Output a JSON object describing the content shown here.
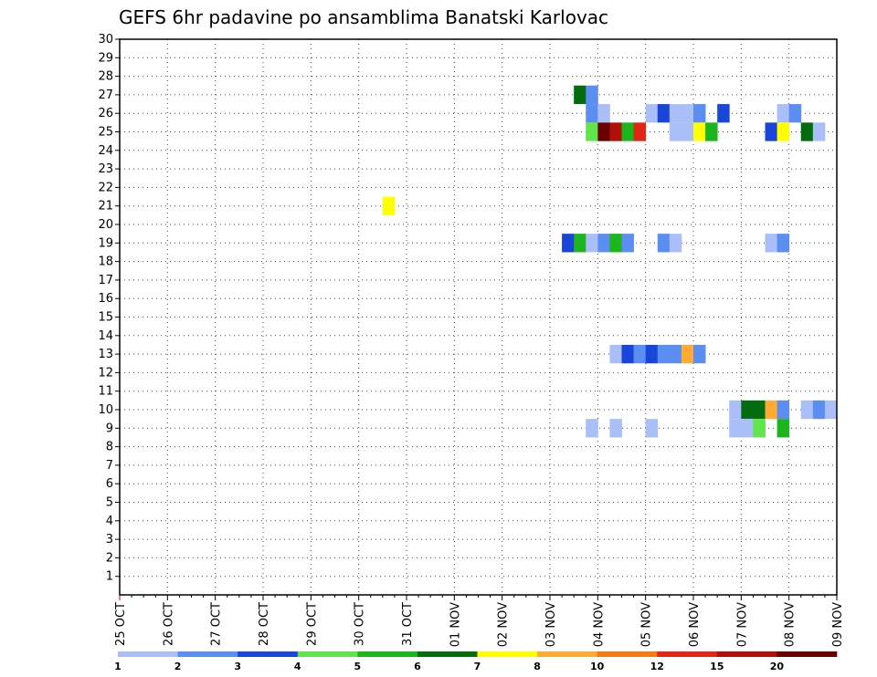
{
  "chart_data": {
    "type": "heatmap",
    "title": "GEFS 6hr padavine po ansamblima Banatski Karlovac",
    "xlabel": "",
    "ylabel": "",
    "x_ticks": [
      "25 OCT",
      "26 OCT",
      "27 OCT",
      "28 OCT",
      "29 OCT",
      "30 OCT",
      "31 OCT",
      "01 NOV",
      "02 NOV",
      "03 NOV",
      "04 NOV",
      "05 NOV",
      "06 NOV",
      "07 NOV",
      "08 NOV",
      "09 NOV"
    ],
    "y_ticks": [
      "1",
      "2",
      "3",
      "4",
      "5",
      "6",
      "7",
      "8",
      "9",
      "10",
      "11",
      "12",
      "13",
      "14",
      "15",
      "16",
      "17",
      "18",
      "19",
      "20",
      "21",
      "22",
      "23",
      "24",
      "25",
      "26",
      "27",
      "28",
      "29",
      "30"
    ],
    "ylim": [
      0,
      30
    ],
    "x_step": "6 hours",
    "grid": true,
    "color_scale": {
      "labels": [
        "1",
        "2",
        "3",
        "4",
        "5",
        "6",
        "7",
        "8",
        "10",
        "12",
        "15",
        "20"
      ],
      "colors": [
        "#aabff7",
        "#5c8ef1",
        "#1946d8",
        "#62e44c",
        "#1db51d",
        "#046b0e",
        "#ffff00",
        "#ffaa33",
        "#f57a14",
        "#e02614",
        "#b01008",
        "#6a0000"
      ]
    },
    "cells": [
      {
        "member": 27,
        "steps": [
          {
            "date": "03 NOV 12Z",
            "value": 6
          },
          {
            "date": "03 NOV 18Z",
            "value": 2
          }
        ]
      },
      {
        "member": 26,
        "steps": [
          {
            "date": "03 NOV 18Z",
            "value": 2
          },
          {
            "date": "04 NOV 00Z",
            "value": 1
          },
          {
            "date": "05 NOV 00Z",
            "value": 1
          },
          {
            "date": "05 NOV 06Z",
            "value": 3
          },
          {
            "date": "05 NOV 12Z",
            "value": 1
          },
          {
            "date": "05 NOV 18Z",
            "value": 1
          },
          {
            "date": "06 NOV 00Z",
            "value": 2
          },
          {
            "date": "06 NOV 12Z",
            "value": 3
          },
          {
            "date": "07 NOV 18Z",
            "value": 1
          },
          {
            "date": "08 NOV 00Z",
            "value": 2
          }
        ]
      },
      {
        "member": 25,
        "steps": [
          {
            "date": "03 NOV 18Z",
            "value": 4
          },
          {
            "date": "04 NOV 00Z",
            "value": 20
          },
          {
            "date": "04 NOV 06Z",
            "value": 15
          },
          {
            "date": "04 NOV 12Z",
            "value": 5
          },
          {
            "date": "04 NOV 18Z",
            "value": 12
          },
          {
            "date": "05 NOV 12Z",
            "value": 1
          },
          {
            "date": "05 NOV 18Z",
            "value": 1
          },
          {
            "date": "06 NOV 00Z",
            "value": 7
          },
          {
            "date": "06 NOV 06Z",
            "value": 5
          },
          {
            "date": "07 NOV 12Z",
            "value": 3
          },
          {
            "date": "07 NOV 18Z",
            "value": 7
          },
          {
            "date": "08 NOV 06Z",
            "value": 6
          },
          {
            "date": "08 NOV 12Z",
            "value": 1
          }
        ]
      },
      {
        "member": 21,
        "steps": [
          {
            "date": "30 OCT 12Z",
            "value": 7
          }
        ]
      },
      {
        "member": 19,
        "steps": [
          {
            "date": "03 NOV 06Z",
            "value": 3
          },
          {
            "date": "03 NOV 12Z",
            "value": 5
          },
          {
            "date": "03 NOV 18Z",
            "value": 1
          },
          {
            "date": "04 NOV 00Z",
            "value": 2
          },
          {
            "date": "04 NOV 06Z",
            "value": 5
          },
          {
            "date": "04 NOV 12Z",
            "value": 2
          },
          {
            "date": "05 NOV 06Z",
            "value": 2
          },
          {
            "date": "05 NOV 12Z",
            "value": 1
          },
          {
            "date": "07 NOV 12Z",
            "value": 1
          },
          {
            "date": "07 NOV 18Z",
            "value": 2
          }
        ]
      },
      {
        "member": 13,
        "steps": [
          {
            "date": "04 NOV 06Z",
            "value": 1
          },
          {
            "date": "04 NOV 12Z",
            "value": 3
          },
          {
            "date": "04 NOV 18Z",
            "value": 2
          },
          {
            "date": "05 NOV 00Z",
            "value": 3
          },
          {
            "date": "05 NOV 06Z",
            "value": 2
          },
          {
            "date": "05 NOV 12Z",
            "value": 2
          },
          {
            "date": "05 NOV 18Z",
            "value": 8
          },
          {
            "date": "06 NOV 00Z",
            "value": 2
          }
        ]
      },
      {
        "member": 10,
        "steps": [
          {
            "date": "06 NOV 18Z",
            "value": 1
          },
          {
            "date": "07 NOV 00Z",
            "value": 6
          },
          {
            "date": "07 NOV 06Z",
            "value": 6
          },
          {
            "date": "07 NOV 12Z",
            "value": 8
          },
          {
            "date": "07 NOV 18Z",
            "value": 2
          },
          {
            "date": "08 NOV 06Z",
            "value": 1
          },
          {
            "date": "08 NOV 12Z",
            "value": 2
          },
          {
            "date": "08 NOV 18Z",
            "value": 1
          }
        ]
      },
      {
        "member": 9,
        "steps": [
          {
            "date": "03 NOV 18Z",
            "value": 1
          },
          {
            "date": "04 NOV 06Z",
            "value": 1
          },
          {
            "date": "05 NOV 00Z",
            "value": 1
          },
          {
            "date": "06 NOV 18Z",
            "value": 1
          },
          {
            "date": "07 NOV 00Z",
            "value": 1
          },
          {
            "date": "07 NOV 06Z",
            "value": 4
          },
          {
            "date": "07 NOV 18Z",
            "value": 5
          }
        ]
      }
    ]
  }
}
